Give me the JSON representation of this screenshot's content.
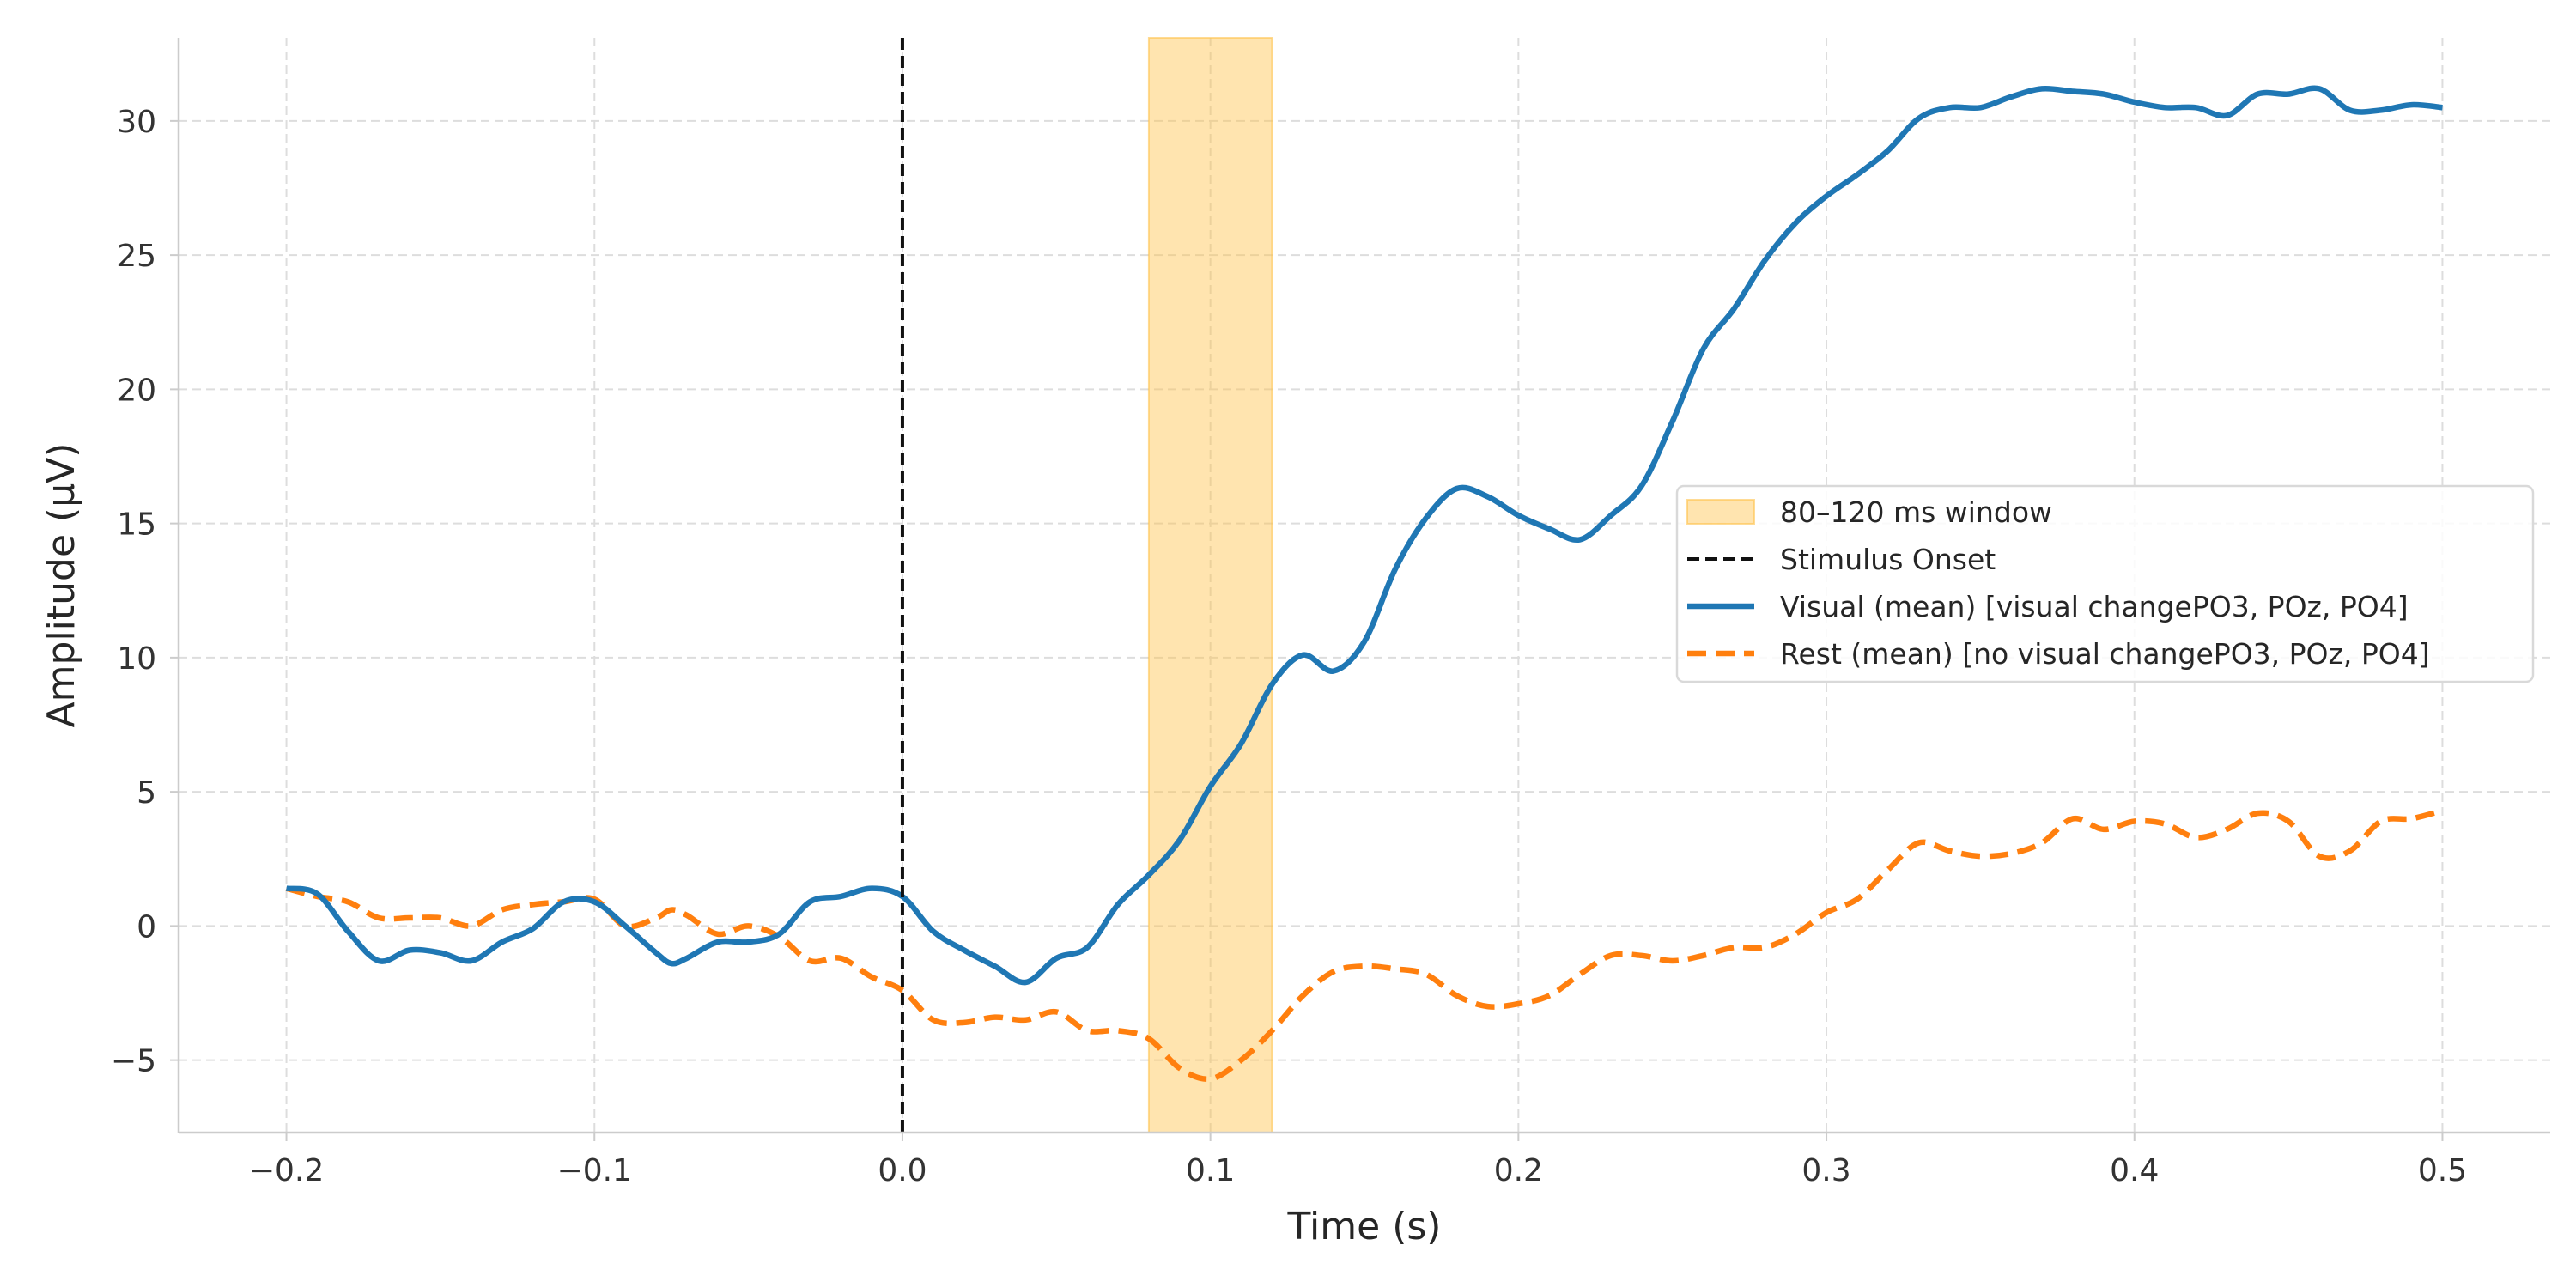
{
  "chart_data": {
    "type": "line",
    "title": "",
    "xlabel": "Time (s)",
    "ylabel": "Amplitude (µV)",
    "xlim": [
      -0.235,
      0.535
    ],
    "ylim": [
      -7.7,
      33.1
    ],
    "xticks": [
      -0.2,
      -0.1,
      0.0,
      0.1,
      0.2,
      0.3,
      0.4,
      0.5
    ],
    "xtick_labels": [
      "−0.2",
      "−0.1",
      "0.0",
      "0.1",
      "0.2",
      "0.3",
      "0.4",
      "0.5"
    ],
    "yticks": [
      -5,
      0,
      5,
      10,
      15,
      20,
      25,
      30
    ],
    "ytick_labels": [
      "−5",
      "0",
      "5",
      "10",
      "15",
      "20",
      "25",
      "30"
    ],
    "grid": true,
    "legend_position": "center-right",
    "window": {
      "label": "80–120 ms window",
      "start": 0.08,
      "end": 0.12,
      "color": "#ffc34d"
    },
    "onset": {
      "label": "Stimulus Onset",
      "x": 0.0,
      "color": "#111111"
    },
    "series": [
      {
        "name": "Visual (mean) [visual changePO3, POz, PO4]",
        "color": "#1f77b4",
        "style": "solid",
        "points": [
          [
            -0.2,
            1.4
          ],
          [
            -0.19,
            1.2
          ],
          [
            -0.18,
            -0.2
          ],
          [
            -0.17,
            -1.3
          ],
          [
            -0.16,
            -0.9
          ],
          [
            -0.15,
            -1.0
          ],
          [
            -0.14,
            -1.3
          ],
          [
            -0.13,
            -0.6
          ],
          [
            -0.12,
            -0.1
          ],
          [
            -0.11,
            0.9
          ],
          [
            -0.1,
            0.9
          ],
          [
            -0.09,
            0.0
          ],
          [
            -0.08,
            -1.0
          ],
          [
            -0.075,
            -1.4
          ],
          [
            -0.07,
            -1.2
          ],
          [
            -0.06,
            -0.6
          ],
          [
            -0.05,
            -0.6
          ],
          [
            -0.04,
            -0.3
          ],
          [
            -0.03,
            0.9
          ],
          [
            -0.02,
            1.1
          ],
          [
            -0.01,
            1.4
          ],
          [
            0.0,
            1.1
          ],
          [
            0.01,
            -0.2
          ],
          [
            0.02,
            -0.9
          ],
          [
            0.03,
            -1.5
          ],
          [
            0.04,
            -2.1
          ],
          [
            0.05,
            -1.2
          ],
          [
            0.06,
            -0.8
          ],
          [
            0.07,
            0.8
          ],
          [
            0.08,
            1.9
          ],
          [
            0.09,
            3.2
          ],
          [
            0.1,
            5.2
          ],
          [
            0.11,
            6.8
          ],
          [
            0.12,
            9.0
          ],
          [
            0.13,
            10.1
          ],
          [
            0.14,
            9.5
          ],
          [
            0.15,
            10.6
          ],
          [
            0.16,
            13.3
          ],
          [
            0.17,
            15.2
          ],
          [
            0.18,
            16.3
          ],
          [
            0.19,
            16.0
          ],
          [
            0.2,
            15.3
          ],
          [
            0.21,
            14.8
          ],
          [
            0.22,
            14.4
          ],
          [
            0.23,
            15.3
          ],
          [
            0.24,
            16.4
          ],
          [
            0.25,
            18.8
          ],
          [
            0.26,
            21.5
          ],
          [
            0.27,
            23.0
          ],
          [
            0.28,
            24.8
          ],
          [
            0.29,
            26.2
          ],
          [
            0.3,
            27.2
          ],
          [
            0.31,
            28.0
          ],
          [
            0.32,
            28.9
          ],
          [
            0.33,
            30.1
          ],
          [
            0.34,
            30.5
          ],
          [
            0.35,
            30.5
          ],
          [
            0.36,
            30.9
          ],
          [
            0.37,
            31.2
          ],
          [
            0.38,
            31.1
          ],
          [
            0.39,
            31.0
          ],
          [
            0.4,
            30.7
          ],
          [
            0.41,
            30.5
          ],
          [
            0.42,
            30.5
          ],
          [
            0.43,
            30.2
          ],
          [
            0.44,
            31.0
          ],
          [
            0.45,
            31.0
          ],
          [
            0.46,
            31.2
          ],
          [
            0.47,
            30.4
          ],
          [
            0.48,
            30.4
          ],
          [
            0.49,
            30.6
          ],
          [
            0.5,
            30.5
          ]
        ]
      },
      {
        "name": "Rest (mean) [no visual changePO3, POz, PO4]",
        "color": "#ff7f0e",
        "style": "dashed",
        "points": [
          [
            -0.2,
            1.4
          ],
          [
            -0.19,
            1.1
          ],
          [
            -0.18,
            0.9
          ],
          [
            -0.17,
            0.3
          ],
          [
            -0.16,
            0.3
          ],
          [
            -0.15,
            0.3
          ],
          [
            -0.14,
            0.0
          ],
          [
            -0.13,
            0.6
          ],
          [
            -0.12,
            0.8
          ],
          [
            -0.11,
            0.9
          ],
          [
            -0.1,
            1.0
          ],
          [
            -0.09,
            0.0
          ],
          [
            -0.08,
            0.3
          ],
          [
            -0.075,
            0.6
          ],
          [
            -0.07,
            0.4
          ],
          [
            -0.06,
            -0.3
          ],
          [
            -0.05,
            0.0
          ],
          [
            -0.04,
            -0.4
          ],
          [
            -0.03,
            -1.3
          ],
          [
            -0.02,
            -1.2
          ],
          [
            -0.01,
            -1.9
          ],
          [
            0.0,
            -2.4
          ],
          [
            0.01,
            -3.5
          ],
          [
            0.02,
            -3.6
          ],
          [
            0.03,
            -3.4
          ],
          [
            0.04,
            -3.5
          ],
          [
            0.05,
            -3.2
          ],
          [
            0.06,
            -3.9
          ],
          [
            0.07,
            -3.9
          ],
          [
            0.08,
            -4.2
          ],
          [
            0.09,
            -5.3
          ],
          [
            0.1,
            -5.7
          ],
          [
            0.11,
            -5.0
          ],
          [
            0.12,
            -3.9
          ],
          [
            0.13,
            -2.6
          ],
          [
            0.14,
            -1.7
          ],
          [
            0.15,
            -1.5
          ],
          [
            0.16,
            -1.6
          ],
          [
            0.17,
            -1.8
          ],
          [
            0.18,
            -2.6
          ],
          [
            0.19,
            -3.0
          ],
          [
            0.2,
            -2.9
          ],
          [
            0.21,
            -2.6
          ],
          [
            0.22,
            -1.8
          ],
          [
            0.23,
            -1.1
          ],
          [
            0.24,
            -1.1
          ],
          [
            0.25,
            -1.3
          ],
          [
            0.26,
            -1.1
          ],
          [
            0.27,
            -0.8
          ],
          [
            0.28,
            -0.8
          ],
          [
            0.29,
            -0.3
          ],
          [
            0.3,
            0.5
          ],
          [
            0.31,
            1.0
          ],
          [
            0.32,
            2.1
          ],
          [
            0.33,
            3.1
          ],
          [
            0.34,
            2.8
          ],
          [
            0.35,
            2.6
          ],
          [
            0.36,
            2.7
          ],
          [
            0.37,
            3.1
          ],
          [
            0.38,
            4.0
          ],
          [
            0.39,
            3.6
          ],
          [
            0.4,
            3.9
          ],
          [
            0.41,
            3.8
          ],
          [
            0.42,
            3.3
          ],
          [
            0.43,
            3.6
          ],
          [
            0.44,
            4.2
          ],
          [
            0.45,
            3.9
          ],
          [
            0.46,
            2.6
          ],
          [
            0.47,
            2.8
          ],
          [
            0.48,
            3.9
          ],
          [
            0.49,
            4.0
          ],
          [
            0.5,
            4.3
          ]
        ]
      }
    ]
  }
}
